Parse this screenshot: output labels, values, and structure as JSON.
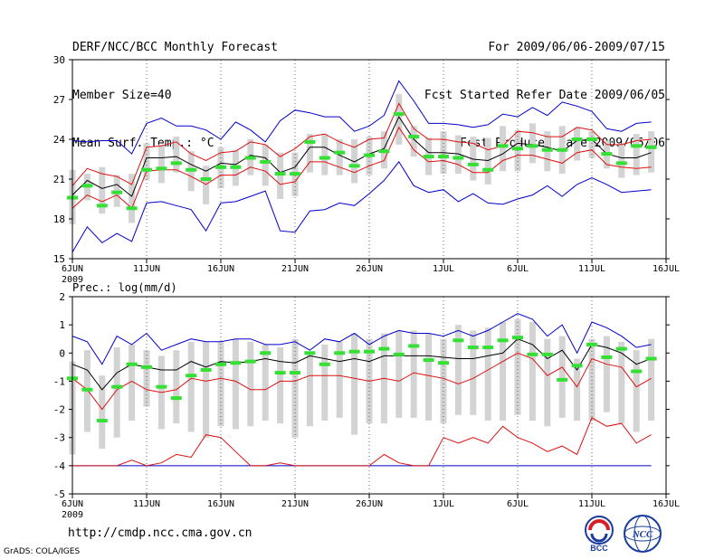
{
  "header": {
    "title": "DERF/NCC/BCC Monthly Forecast",
    "member_size": "Member Size=40",
    "variable": "Mean Surf. Temp.: °C",
    "period": "For 2009/06/06-2009/07/15",
    "fcst_started": "Fcst Started Refer Date 2009/06/05",
    "fcst_produced": "Fcst Produced Date 2009/06/06"
  },
  "footer": {
    "url": "http://cmdp.ncc.cma.gov.cn",
    "credit": "GrADS: COLA/IGES"
  },
  "logos": [
    {
      "name": "BCC",
      "icon": "bcc-logo-icon",
      "color": "#1a3d9c",
      "accent": "#d81e26"
    },
    {
      "name": "NCC",
      "icon": "ncc-logo-icon",
      "color": "#1a3d9c"
    }
  ],
  "colors": {
    "box": "#d3d3d3",
    "median": "#33e033",
    "mean": "#000000",
    "spread": "#dd1111",
    "extreme": "#0000cc"
  },
  "chart_data": [
    {
      "type": "box-ensemble",
      "title": "Mean Surf. Temp.: °C",
      "ylim": [
        15,
        30
      ],
      "yticks": [
        15,
        18,
        21,
        24,
        27,
        30
      ],
      "xlim": [
        1,
        41
      ],
      "xticks": [
        {
          "day": 1,
          "label": "6JUN",
          "sub": "2009"
        },
        {
          "day": 6,
          "label": "11JUN"
        },
        {
          "day": 11,
          "label": "16JUN"
        },
        {
          "day": 16,
          "label": "21JUN"
        },
        {
          "day": 21,
          "label": "26JUN"
        },
        {
          "day": 26,
          "label": "1JUL"
        },
        {
          "day": 31,
          "label": "6JUL"
        },
        {
          "day": 36,
          "label": "11JUL"
        },
        {
          "day": 41,
          "label": "16JUL"
        }
      ],
      "days": [
        1,
        2,
        3,
        4,
        5,
        6,
        7,
        8,
        9,
        10,
        11,
        12,
        13,
        14,
        15,
        16,
        17,
        18,
        19,
        20,
        21,
        22,
        23,
        24,
        25,
        26,
        27,
        28,
        29,
        30,
        31,
        32,
        33,
        34,
        35,
        36,
        37,
        38,
        39,
        40
      ],
      "mean": [
        19.8,
        20.9,
        20.3,
        20.6,
        19.7,
        22.6,
        22.6,
        22.7,
        22.1,
        21.6,
        22.2,
        22.1,
        22.8,
        22.6,
        21.5,
        21.9,
        23.4,
        23.4,
        22.8,
        22.3,
        22.9,
        23.3,
        25.7,
        24.0,
        23.0,
        23.0,
        22.9,
        22.5,
        22.4,
        22.9,
        23.7,
        23.6,
        23.4,
        23.1,
        23.9,
        24.0,
        22.9,
        22.6,
        22.6,
        23.0
      ],
      "upper": [
        20.5,
        21.8,
        21.4,
        21.2,
        20.6,
        23.4,
        23.5,
        23.8,
        22.9,
        22.4,
        23.0,
        23.1,
        23.8,
        23.6,
        22.7,
        23.3,
        24.2,
        24.4,
        23.8,
        23.4,
        24.0,
        24.1,
        26.7,
        24.8,
        24.0,
        24.0,
        23.8,
        23.7,
        23.2,
        23.5,
        24.6,
        24.5,
        24.2,
        24.2,
        24.9,
        24.7,
        23.6,
        23.6,
        23.9,
        24.0
      ],
      "lower": [
        18.8,
        19.8,
        19.3,
        19.8,
        18.8,
        21.6,
        21.7,
        21.7,
        21.2,
        20.6,
        21.3,
        21.3,
        21.9,
        21.6,
        20.6,
        20.8,
        22.3,
        22.3,
        21.9,
        21.5,
        22.0,
        22.4,
        24.9,
        23.2,
        22.3,
        22.4,
        22.1,
        21.5,
        21.5,
        22.4,
        22.8,
        22.8,
        22.5,
        22.2,
        23.0,
        23.2,
        22.1,
        21.9,
        21.8,
        21.9
      ],
      "max": [
        23.9,
        23.8,
        23.9,
        23.9,
        22.9,
        25.2,
        25.6,
        25.0,
        25.0,
        24.7,
        24.0,
        25.3,
        24.7,
        23.8,
        25.4,
        26.2,
        26.0,
        25.7,
        25.7,
        24.6,
        25.0,
        25.8,
        28.4,
        26.9,
        25.2,
        25.2,
        25.1,
        24.9,
        25.1,
        25.9,
        25.7,
        26.4,
        25.8,
        26.8,
        26.5,
        26.1,
        24.8,
        24.6,
        25.2,
        25.3
      ],
      "min": [
        15.5,
        17.4,
        16.2,
        16.9,
        16.3,
        19.2,
        19.3,
        19.0,
        18.7,
        17.1,
        19.2,
        19.3,
        19.7,
        20.1,
        17.1,
        17.0,
        18.6,
        18.7,
        19.2,
        19.0,
        19.9,
        20.9,
        22.3,
        20.5,
        20.0,
        20.2,
        19.3,
        19.9,
        19.2,
        19.1,
        19.5,
        19.8,
        20.5,
        19.7,
        20.6,
        21.1,
        20.6,
        20.0,
        20.1,
        20.2
      ],
      "median": [
        19.6,
        20.5,
        19.0,
        20.0,
        18.8,
        21.7,
        21.8,
        22.2,
        21.7,
        21.0,
        21.9,
        21.9,
        22.6,
        22.3,
        21.4,
        21.4,
        23.8,
        22.6,
        23.0,
        22.0,
        22.8,
        23.1,
        25.9,
        24.2,
        22.7,
        22.7,
        22.6,
        22.1,
        21.7,
        23.5,
        23.3,
        23.5,
        23.2,
        23.2,
        24.0,
        24.0,
        22.9,
        22.2,
        23.5,
        23.4
      ],
      "box_high": [
        21.7,
        21.4,
        21.9,
        21.3,
        21.4,
        23.7,
        23.6,
        24.2,
        23.1,
        22.0,
        23.4,
        23.2,
        24.0,
        23.6,
        23.0,
        23.0,
        24.4,
        24.4,
        24.0,
        24.0,
        24.2,
        24.6,
        27.4,
        25.0,
        24.1,
        24.6,
        24.3,
        24.2,
        24.1,
        25.0,
        24.7,
        25.2,
        24.6,
        25.0,
        24.9,
        24.6,
        23.9,
        23.7,
        24.4,
        24.6
      ],
      "box_low": [
        17.6,
        19.4,
        18.4,
        18.9,
        17.7,
        20.9,
        20.7,
        21.5,
        20.1,
        19.1,
        20.3,
        20.5,
        21.3,
        20.5,
        19.5,
        19.7,
        21.5,
        21.3,
        21.3,
        20.7,
        21.3,
        21.8,
        23.6,
        22.7,
        21.3,
        21.4,
        21.4,
        20.9,
        20.6,
        21.6,
        21.6,
        22.2,
        21.6,
        21.4,
        22.4,
        22.6,
        21.8,
        21.1,
        21.3,
        21.5
      ]
    },
    {
      "type": "box-ensemble",
      "title": "Prec.: log(mm/d)",
      "ylim": [
        -5,
        2
      ],
      "yticks": [
        -5,
        -4,
        -3,
        -2,
        -1,
        0,
        1,
        2
      ],
      "xlim": [
        1,
        41
      ],
      "xticks": [
        {
          "day": 1,
          "label": "6JUN",
          "sub": "2009"
        },
        {
          "day": 6,
          "label": "11JUN"
        },
        {
          "day": 11,
          "label": "16JUN"
        },
        {
          "day": 16,
          "label": "21JUN"
        },
        {
          "day": 21,
          "label": "26JUN"
        },
        {
          "day": 26,
          "label": "1JUL"
        },
        {
          "day": 31,
          "label": "6JUL"
        },
        {
          "day": 36,
          "label": "11JUL"
        },
        {
          "day": 41,
          "label": "16JUL"
        }
      ],
      "days": [
        1,
        2,
        3,
        4,
        5,
        6,
        7,
        8,
        9,
        10,
        11,
        12,
        13,
        14,
        15,
        16,
        17,
        18,
        19,
        20,
        21,
        22,
        23,
        24,
        25,
        26,
        27,
        28,
        29,
        30,
        31,
        32,
        33,
        34,
        35,
        36,
        37,
        38,
        39,
        40
      ],
      "mean": [
        -0.4,
        -0.6,
        -1.3,
        -0.7,
        -0.4,
        -0.5,
        -0.6,
        -0.6,
        -0.3,
        -0.5,
        -0.3,
        -0.35,
        -0.3,
        -0.2,
        -0.3,
        -0.35,
        -0.1,
        -0.2,
        -0.3,
        -0.2,
        -0.3,
        -0.1,
        -0.1,
        -0.1,
        -0.1,
        -0.15,
        -0.2,
        -0.2,
        -0.1,
        0.0,
        0.5,
        0.3,
        -0.2,
        0.1,
        -0.6,
        0.3,
        0.2,
        0.0,
        -0.4,
        -0.2
      ],
      "upper": [
        -0.9,
        -1.3,
        -2.0,
        -1.3,
        -1.0,
        -1.3,
        -1.4,
        -1.3,
        -0.9,
        -1.0,
        -0.9,
        -1.0,
        -1.3,
        -1.3,
        -1.0,
        -1.0,
        -0.8,
        -0.8,
        -0.8,
        -0.9,
        -1.0,
        -0.9,
        -1.0,
        -0.7,
        -0.8,
        -0.9,
        -1.1,
        -0.9,
        -0.6,
        -0.3,
        0.0,
        -0.2,
        -0.8,
        -0.5,
        -1.2,
        -0.2,
        -0.4,
        -0.5,
        -1.2,
        -0.9
      ],
      "lower": [
        -4.0,
        -4.0,
        -4.0,
        -4.0,
        -3.8,
        -4.0,
        -3.9,
        -3.6,
        -3.7,
        -2.9,
        -3.0,
        -3.5,
        -4.0,
        -4.0,
        -3.9,
        -4.0,
        -4.0,
        -4.0,
        -4.0,
        -4.0,
        -4.0,
        -3.6,
        -3.9,
        -4.0,
        -4.0,
        -3.0,
        -3.2,
        -3.0,
        -3.2,
        -2.6,
        -3.0,
        -3.2,
        -3.5,
        -3.3,
        -3.6,
        -2.3,
        -2.6,
        -2.5,
        -3.2,
        -2.9
      ],
      "max": [
        0.6,
        0.4,
        -0.4,
        0.6,
        0.3,
        0.7,
        0.1,
        0.3,
        0.5,
        0.4,
        0.4,
        0.5,
        0.5,
        0.3,
        0.3,
        0.4,
        0.1,
        0.5,
        0.4,
        0.7,
        0.3,
        0.6,
        0.8,
        0.7,
        0.7,
        0.6,
        0.8,
        0.6,
        0.8,
        1.1,
        1.4,
        1.2,
        0.6,
        1.0,
        0.0,
        1.1,
        0.9,
        0.6,
        0.2,
        0.3
      ],
      "min": [
        -4.0,
        -4.0,
        -4.0,
        -4.0,
        -4.0,
        -4.0,
        -4.0,
        -4.0,
        -4.0,
        -4.0,
        -4.0,
        -4.0,
        -4.0,
        -4.0,
        -4.0,
        -4.0,
        -4.0,
        -4.0,
        -4.0,
        -4.0,
        -4.0,
        -4.0,
        -4.0,
        -4.0,
        -4.0,
        -4.0,
        -4.0,
        -4.0,
        -4.0,
        -4.0,
        -4.0,
        -4.0,
        -4.0,
        -4.0,
        -4.0,
        -4.0,
        -4.0,
        -4.0,
        -4.0,
        -4.0
      ],
      "median": [
        -0.9,
        -1.3,
        -2.4,
        -1.2,
        -0.4,
        -0.5,
        -1.2,
        -1.6,
        -0.8,
        -0.6,
        -0.4,
        -0.35,
        -0.3,
        0.0,
        -0.7,
        -0.7,
        0.0,
        -0.4,
        0.0,
        0.05,
        0.05,
        0.15,
        -0.05,
        0.25,
        -0.25,
        -0.35,
        0.45,
        0.2,
        0.2,
        0.45,
        0.55,
        -0.05,
        -0.05,
        -0.95,
        -0.45,
        0.3,
        -0.15,
        0.15,
        -0.65,
        -0.2
      ],
      "box_high": [
        -0.3,
        0.1,
        -0.8,
        0.2,
        0.3,
        0.1,
        -0.1,
        0.1,
        0.4,
        0.4,
        0.4,
        0.5,
        0.4,
        0.3,
        0.2,
        0.5,
        0.0,
        0.3,
        0.4,
        0.7,
        0.5,
        0.7,
        0.8,
        0.8,
        0.7,
        0.5,
        1.0,
        0.8,
        0.9,
        1.1,
        1.2,
        1.1,
        0.5,
        0.6,
        -0.2,
        0.5,
        0.6,
        0.4,
        0.1,
        0.5
      ],
      "box_low": [
        -3.6,
        -2.8,
        -3.4,
        -3.0,
        -2.4,
        -1.9,
        -2.7,
        -2.5,
        -2.8,
        -3.0,
        -2.6,
        -2.7,
        -2.6,
        -2.4,
        -2.5,
        -3.0,
        -2.6,
        -2.4,
        -2.3,
        -2.9,
        -2.5,
        -2.5,
        -2.3,
        -2.3,
        -2.4,
        -2.5,
        -2.2,
        -2.2,
        -2.4,
        -2.4,
        -2.2,
        -2.4,
        -2.6,
        -2.3,
        -2.4,
        -2.4,
        -2.1,
        -2.5,
        -2.8,
        -2.4
      ]
    }
  ]
}
